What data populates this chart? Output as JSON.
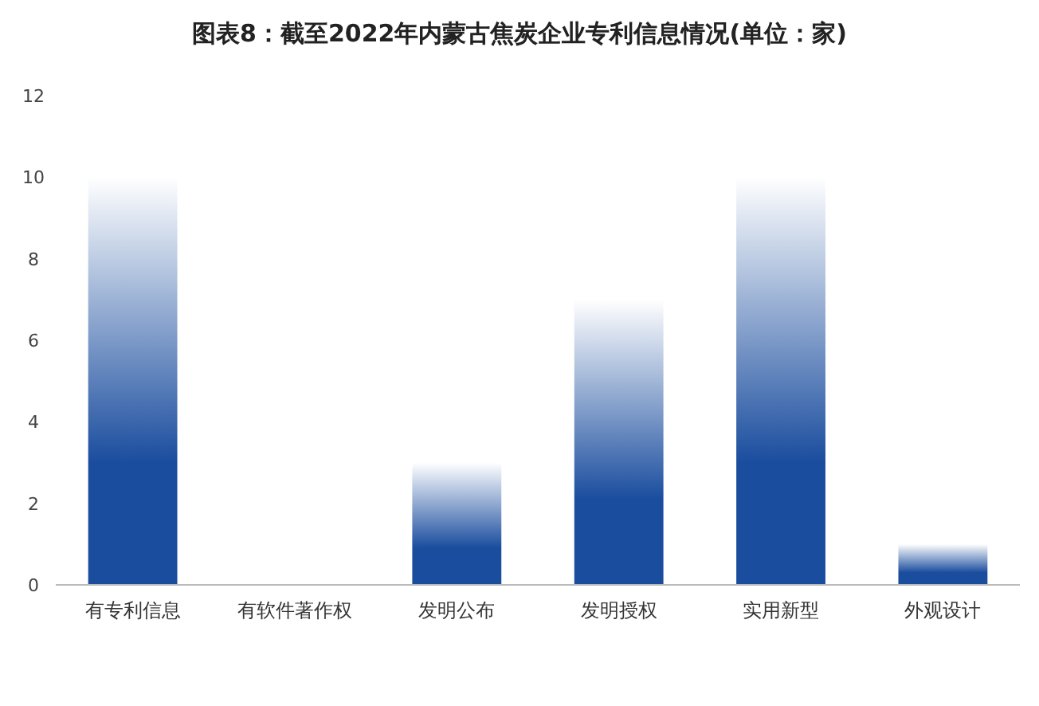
{
  "chart_data": {
    "type": "bar",
    "title": "图表8：截至2022年内蒙古焦炭企业专利信息情况(单位：家)",
    "categories": [
      "有专利信息",
      "有软件著作权",
      "发明公布",
      "发明授权",
      "实用新型",
      "外观设计"
    ],
    "values": [
      10,
      0,
      3,
      7,
      10,
      1
    ],
    "color": "#1a4d9e",
    "ylim": [
      0,
      12
    ],
    "yticks": [
      0,
      2,
      4,
      6,
      8,
      10,
      12
    ],
    "grid": false
  }
}
